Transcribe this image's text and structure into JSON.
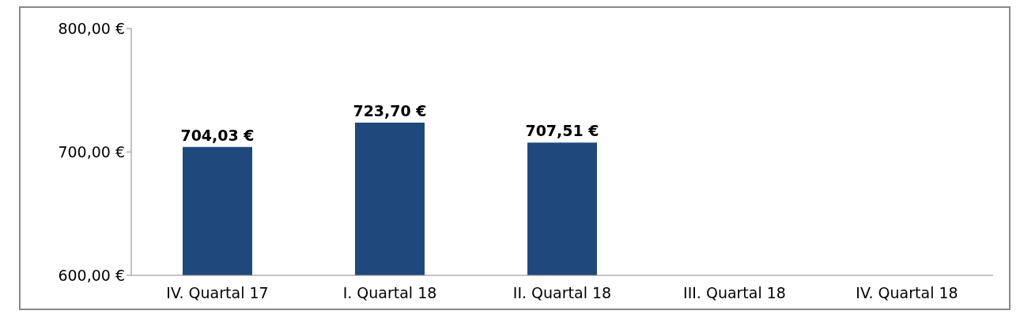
{
  "chart_data": {
    "type": "bar",
    "categories": [
      "IV. Quartal 17",
      "I. Quartal 18",
      "II. Quartal 18",
      "III. Quartal 18",
      "IV. Quartal 18"
    ],
    "values": [
      704.03,
      723.7,
      707.51,
      null,
      null
    ],
    "color": "#1f497d",
    "value_labels": [
      "704,03 €",
      "723,70 €",
      "707,51 €",
      null,
      null
    ],
    "ylim": [
      600,
      800
    ],
    "yticks": [
      {
        "value": 600,
        "label": "600,00 €"
      },
      {
        "value": 700,
        "label": "700,00 €"
      },
      {
        "value": 800,
        "label": "800,00 €"
      }
    ],
    "grid": false,
    "legend": false
  }
}
